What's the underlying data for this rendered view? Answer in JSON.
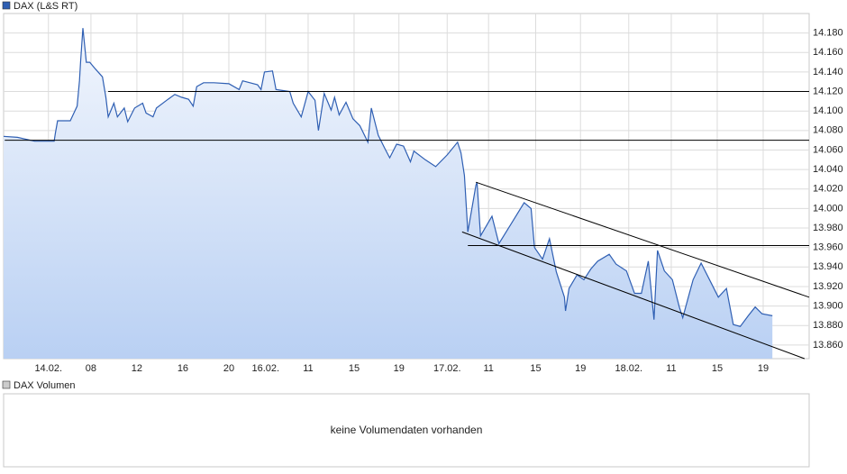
{
  "chart_data": {
    "type": "line",
    "area": true,
    "grid": true,
    "legend": "DAX (L&S RT)",
    "x": [
      0.4,
      1.6,
      3.1,
      4.8,
      4.9,
      5.1,
      6.2,
      6.8,
      7.0,
      7.1,
      7.3,
      7.4,
      7.6,
      7.9,
      8.4,
      9.0,
      9.3,
      9.5,
      10.0,
      10.3,
      10.9,
      11.2,
      11.8,
      12.5,
      12.8,
      13.4,
      13.7,
      14.7,
      15.3,
      15.9,
      16.5,
      16.9,
      17.2,
      17.8,
      18.7,
      20.0,
      20.9,
      21.2,
      22.5,
      22.8,
      23.1,
      23.8,
      24.1,
      25.3,
      25.6,
      26.3,
      26.9,
      27.5,
      27.8,
      28.3,
      28.9,
      29.2,
      29.6,
      30.2,
      30.8,
      31.4,
      32.1,
      32.4,
      33.0,
      33.6,
      34.0,
      34.6,
      35.2,
      35.8,
      36.1,
      37.1,
      38.0,
      39.0,
      39.9,
      40.2,
      40.5,
      40.8,
      41.5,
      41.6,
      41.9,
      42.9,
      43.5,
      44.5,
      45.7,
      46.3,
      46.6,
      47.3,
      47.9,
      48.5,
      49.2,
      49.3,
      49.6,
      50.3,
      50.9,
      51.5,
      52.1,
      53.1,
      53.7,
      54.6,
      55.3,
      55.9,
      56.5,
      57.0,
      57.3,
      57.9,
      58.6,
      59.2,
      59.5,
      60.4,
      61.1,
      62.0,
      62.6,
      63.3,
      63.9,
      64.5,
      65.2,
      65.8,
      66.4,
      67.3
    ],
    "series": [
      {
        "name": "DAX (L&S RT)",
        "color": "#2f5fb3",
        "values": [
          14074,
          14073,
          14069,
          14069,
          14077,
          14090,
          14090,
          14105,
          14131,
          14150,
          14185,
          14173,
          14150,
          14150,
          14143,
          14135,
          14114,
          14094,
          14108,
          14094,
          14103,
          14089,
          14103,
          14108,
          14098,
          14094,
          14103,
          14112,
          14117,
          14114,
          14112,
          14105,
          14125,
          14129,
          14129,
          14128,
          14122,
          14131,
          14127,
          14122,
          14140,
          14141,
          14122,
          14120,
          14108,
          14094,
          14120,
          14111,
          14080,
          14118,
          14101,
          14114,
          14096,
          14109,
          14092,
          14085,
          14068,
          14103,
          14075,
          14061,
          14052,
          14066,
          14064,
          14048,
          14059,
          14050,
          14043,
          14055,
          14068,
          14057,
          14034,
          13976,
          14024,
          14027,
          13972,
          13992,
          13964,
          13983,
          14006,
          14000,
          13960,
          13948,
          13969,
          13935,
          13909,
          13895,
          13918,
          13932,
          13927,
          13938,
          13946,
          13953,
          13943,
          13936,
          13913,
          13913,
          13946,
          13886,
          13957,
          13936,
          13927,
          13899,
          13888,
          13927,
          13944,
          13923,
          13909,
          13918,
          13881,
          13879,
          13890,
          13899,
          13892,
          13890
        ]
      }
    ],
    "lines": [
      {
        "x": [
          9.5,
          70.5
        ],
        "y": [
          14120,
          14120
        ]
      },
      {
        "x": [
          0.5,
          70.5
        ],
        "y": [
          14070,
          14070
        ]
      },
      {
        "x": [
          40.8,
          70.5
        ],
        "y": [
          13962,
          13962
        ]
      },
      {
        "x": [
          41.5,
          70.5
        ],
        "y": [
          14027,
          13909
        ]
      },
      {
        "x": [
          40.3,
          70.1
        ],
        "y": [
          13976,
          13846
        ]
      }
    ],
    "xlim": [
      0.4,
      70.5
    ],
    "xticks": [
      {
        "value": 4.3,
        "label": "14.02."
      },
      {
        "value": 8,
        "label": "08"
      },
      {
        "value": 12,
        "label": "12"
      },
      {
        "value": 16,
        "label": "16"
      },
      {
        "value": 20,
        "label": "20"
      },
      {
        "value": 23.2,
        "label": "16.02."
      },
      {
        "value": 26.9,
        "label": "11"
      },
      {
        "value": 30.9,
        "label": "15"
      },
      {
        "value": 34.8,
        "label": "19"
      },
      {
        "value": 39.0,
        "label": "17.02."
      },
      {
        "value": 42.6,
        "label": "11"
      },
      {
        "value": 46.7,
        "label": "15"
      },
      {
        "value": 50.6,
        "label": "19"
      },
      {
        "value": 54.8,
        "label": "18.02."
      },
      {
        "value": 58.5,
        "label": "11"
      },
      {
        "value": 62.5,
        "label": "15"
      },
      {
        "value": 66.5,
        "label": "19"
      }
    ],
    "ylim": [
      13846,
      14200
    ],
    "yticks": [
      {
        "value": 14180,
        "label": "14.180"
      },
      {
        "value": 14160,
        "label": "14.160"
      },
      {
        "value": 14140,
        "label": "14.140"
      },
      {
        "value": 14120,
        "label": "14.120"
      },
      {
        "value": 14100,
        "label": "14.100"
      },
      {
        "value": 14080,
        "label": "14.080"
      },
      {
        "value": 14060,
        "label": "14.060"
      },
      {
        "value": 14040,
        "label": "14.040"
      },
      {
        "value": 14020,
        "label": "14.020"
      },
      {
        "value": 14000,
        "label": "14.000"
      },
      {
        "value": 13980,
        "label": "13.980"
      },
      {
        "value": 13960,
        "label": "13.960"
      },
      {
        "value": 13940,
        "label": "13.940"
      },
      {
        "value": 13920,
        "label": "13.920"
      },
      {
        "value": 13900,
        "label": "13.900"
      },
      {
        "value": 13880,
        "label": "13.880"
      },
      {
        "value": 13860,
        "label": "13.860"
      }
    ]
  },
  "volume_panel": {
    "legend": "DAX Volumen",
    "message": "keine Volumendaten vorhanden"
  }
}
